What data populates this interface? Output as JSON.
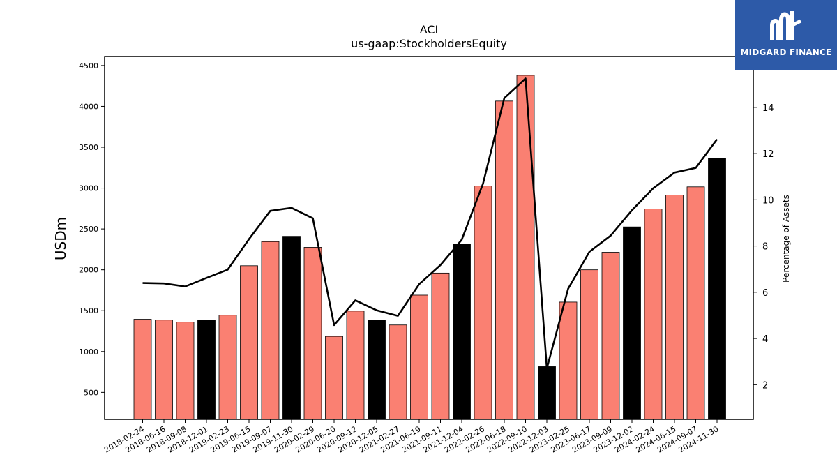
{
  "brand": {
    "name": "MIDGARD FINANCE",
    "accent": "#2d5aa8"
  },
  "chart_data": {
    "type": "bar",
    "title": "ACI",
    "subtitle": "us-gaap:StockholdersEquity",
    "ylabel": "USDm",
    "y2label": "Percentage of Assets",
    "ylim": [
      170,
      4610
    ],
    "y2lim": [
      0.5,
      16.2
    ],
    "yticks": [
      500,
      1000,
      1500,
      2000,
      2500,
      3000,
      3500,
      4000,
      4500
    ],
    "y2ticks": [
      2,
      4,
      6,
      8,
      10,
      12,
      14
    ],
    "categories": [
      "2018-02-24",
      "2018-06-16",
      "2018-09-08",
      "2018-12-01",
      "2019-02-23",
      "2019-06-15",
      "2019-09-07",
      "2019-11-30",
      "2020-02-29",
      "2020-06-20",
      "2020-09-12",
      "2020-12-05",
      "2021-02-27",
      "2021-06-19",
      "2021-09-11",
      "2021-12-04",
      "2022-02-26",
      "2022-06-18",
      "2022-09-10",
      "2022-12-03",
      "2023-02-25",
      "2023-06-17",
      "2023-09-09",
      "2023-12-02",
      "2024-02-24",
      "2024-06-15",
      "2024-09-07",
      "2024-11-30"
    ],
    "series": [
      {
        "type": "bar",
        "values": [
          1395,
          1385,
          1360,
          1385,
          1445,
          2050,
          2345,
          2410,
          2275,
          1185,
          1495,
          1380,
          1325,
          1690,
          1960,
          2310,
          3025,
          4065,
          4380,
          815,
          1605,
          2000,
          2215,
          2525,
          2745,
          2915,
          3015,
          3365
        ],
        "highlight": [
          false,
          false,
          false,
          true,
          false,
          false,
          false,
          true,
          false,
          false,
          false,
          true,
          false,
          false,
          false,
          true,
          false,
          false,
          false,
          true,
          false,
          false,
          false,
          true,
          false,
          false,
          false,
          true
        ]
      },
      {
        "type": "line",
        "axis": "right",
        "values": [
          6.4,
          6.38,
          6.25,
          6.62,
          6.98,
          8.3,
          9.52,
          9.65,
          9.2,
          4.58,
          5.65,
          5.22,
          4.98,
          6.35,
          7.18,
          8.27,
          10.7,
          14.4,
          15.25,
          2.7,
          6.15,
          7.75,
          8.45,
          9.55,
          10.5,
          11.18,
          11.38,
          12.62
        ]
      }
    ],
    "colors": {
      "bar": "#fa8072",
      "bar_highlight": "#000000",
      "line": "#000000"
    }
  }
}
